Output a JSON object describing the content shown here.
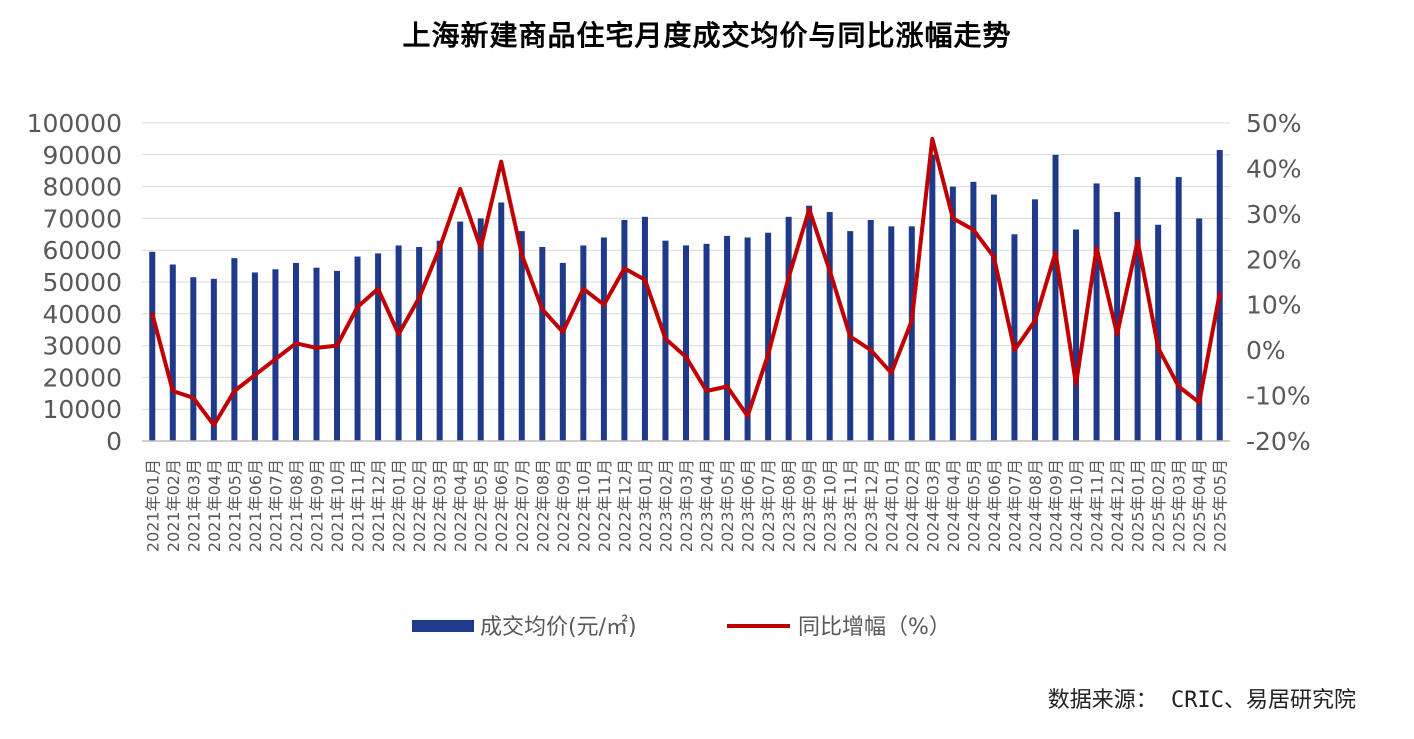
{
  "chart_data": {
    "type": "bar+line",
    "title": "上海新建商品住宅月度成交均价与同比涨幅走势",
    "source": "数据来源： CRIC、易居研究院",
    "categories": [
      "2021年01月",
      "2021年02月",
      "2021年03月",
      "2021年04月",
      "2021年05月",
      "2021年06月",
      "2021年07月",
      "2021年08月",
      "2021年09月",
      "2021年10月",
      "2021年11月",
      "2021年12月",
      "2022年01月",
      "2022年02月",
      "2022年03月",
      "2022年04月",
      "2022年05月",
      "2022年06月",
      "2022年07月",
      "2022年08月",
      "2022年09月",
      "2022年10月",
      "2022年11月",
      "2022年12月",
      "2023年01月",
      "2023年02月",
      "2023年03月",
      "2023年04月",
      "2023年05月",
      "2023年06月",
      "2023年07月",
      "2023年08月",
      "2023年09月",
      "2023年10月",
      "2023年11月",
      "2023年12月",
      "2024年01月",
      "2024年02月",
      "2024年03月",
      "2024年04月",
      "2024年05月",
      "2024年06月",
      "2024年07月",
      "2024年08月",
      "2024年09月",
      "2024年10月",
      "2024年11月",
      "2024年12月",
      "2025年01月",
      "2025年02月",
      "2025年03月",
      "2025年04月",
      "2025年05月"
    ],
    "series": [
      {
        "name": "成交均价(元/㎡)",
        "type": "bar",
        "axis": "left",
        "color": "#1f3a8a",
        "values": [
          59500,
          55500,
          51500,
          51000,
          57500,
          53000,
          54000,
          56000,
          54500,
          53500,
          58000,
          59000,
          61500,
          61000,
          63000,
          69000,
          70000,
          75000,
          66000,
          61000,
          56000,
          61500,
          64000,
          69500,
          70500,
          63000,
          61500,
          62000,
          64500,
          64000,
          65500,
          70500,
          74000,
          72000,
          66000,
          69500,
          67500,
          67500,
          90000,
          80000,
          81500,
          77500,
          65000,
          76000,
          90000,
          66500,
          81000,
          72000,
          83000,
          68000,
          83000,
          70000,
          91500
        ]
      },
      {
        "name": "同比增幅（%）",
        "type": "line",
        "axis": "right",
        "color": "#c00000",
        "values": [
          8,
          -9,
          -10.5,
          -16.5,
          -9,
          -5.5,
          -2,
          1.5,
          0.5,
          1,
          9.5,
          13.5,
          3.5,
          11.5,
          22.5,
          35.5,
          22.5,
          41.5,
          21,
          9,
          4,
          13.5,
          10,
          18,
          15.5,
          2.5,
          -1.5,
          -9,
          -8,
          -14.5,
          -1,
          16,
          31,
          17.5,
          3,
          0,
          -5,
          6.5,
          46.5,
          29,
          26.5,
          20.5,
          0,
          6.5,
          21.5,
          -7.5,
          22.5,
          3.5,
          24,
          0.5,
          -8,
          -11.5,
          12.5
        ]
      }
    ],
    "yleft": {
      "min": 0,
      "max": 100000,
      "step": 10000,
      "ticks": [
        "0",
        "10000",
        "20000",
        "30000",
        "40000",
        "50000",
        "60000",
        "70000",
        "80000",
        "90000",
        "100000"
      ]
    },
    "yright": {
      "min": -20,
      "max": 50,
      "step": 10,
      "ticks": [
        "-20%",
        "-10%",
        "0%",
        "10%",
        "20%",
        "30%",
        "40%",
        "50%"
      ]
    },
    "grid": true,
    "legend_position": "bottom"
  }
}
